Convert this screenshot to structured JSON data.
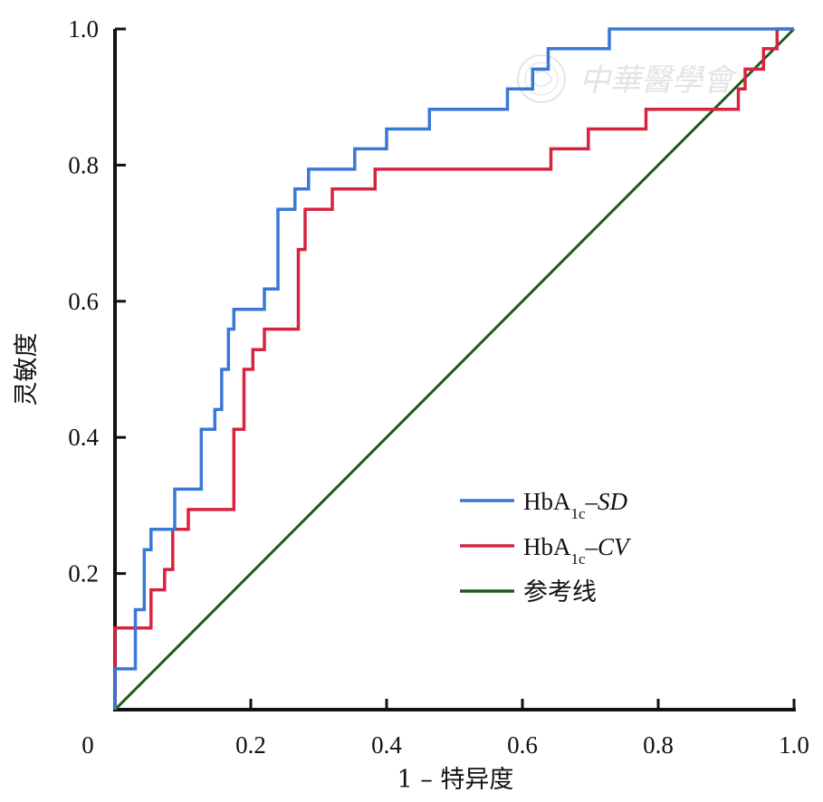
{
  "chart_data": {
    "type": "line",
    "title": "",
    "xlabel": "1 – 特异度",
    "ylabel": "灵敏度",
    "xlim": [
      0,
      1
    ],
    "ylim": [
      0,
      1
    ],
    "x_ticks": [
      "0",
      "0.2",
      "0.4",
      "0.6",
      "0.8",
      "1.0"
    ],
    "y_ticks": [
      "0.2",
      "0.4",
      "0.6",
      "0.8",
      "1.0"
    ],
    "grid": false,
    "legend_position": "lower-right",
    "series": [
      {
        "name": "HbA1c-SD",
        "name_base": "HbA",
        "name_sub": "1c",
        "name_suffix": "–SD",
        "color": "#3a78d6",
        "points": [
          [
            0,
            0
          ],
          [
            0,
            0.06
          ],
          [
            0.03,
            0.06
          ],
          [
            0.03,
            0.147
          ],
          [
            0.043,
            0.147
          ],
          [
            0.043,
            0.235
          ],
          [
            0.053,
            0.235
          ],
          [
            0.053,
            0.265
          ],
          [
            0.088,
            0.265
          ],
          [
            0.088,
            0.324
          ],
          [
            0.127,
            0.324
          ],
          [
            0.127,
            0.412
          ],
          [
            0.147,
            0.412
          ],
          [
            0.147,
            0.441
          ],
          [
            0.157,
            0.441
          ],
          [
            0.157,
            0.5
          ],
          [
            0.167,
            0.5
          ],
          [
            0.167,
            0.559
          ],
          [
            0.175,
            0.559
          ],
          [
            0.175,
            0.588
          ],
          [
            0.22,
            0.588
          ],
          [
            0.22,
            0.618
          ],
          [
            0.24,
            0.618
          ],
          [
            0.24,
            0.735
          ],
          [
            0.265,
            0.735
          ],
          [
            0.265,
            0.765
          ],
          [
            0.285,
            0.765
          ],
          [
            0.285,
            0.794
          ],
          [
            0.353,
            0.794
          ],
          [
            0.353,
            0.824
          ],
          [
            0.4,
            0.824
          ],
          [
            0.4,
            0.853
          ],
          [
            0.463,
            0.853
          ],
          [
            0.463,
            0.882
          ],
          [
            0.578,
            0.882
          ],
          [
            0.578,
            0.912
          ],
          [
            0.615,
            0.912
          ],
          [
            0.615,
            0.941
          ],
          [
            0.638,
            0.941
          ],
          [
            0.638,
            0.971
          ],
          [
            0.728,
            0.971
          ],
          [
            0.728,
            1.0
          ],
          [
            1.0,
            1.0
          ]
        ]
      },
      {
        "name": "HbA1c-CV",
        "name_base": "HbA",
        "name_sub": "1c",
        "name_suffix": "–CV",
        "color": "#d8233f",
        "points": [
          [
            0,
            0
          ],
          [
            0,
            0.12
          ],
          [
            0.053,
            0.12
          ],
          [
            0.053,
            0.176
          ],
          [
            0.073,
            0.176
          ],
          [
            0.073,
            0.206
          ],
          [
            0.085,
            0.206
          ],
          [
            0.085,
            0.265
          ],
          [
            0.108,
            0.265
          ],
          [
            0.108,
            0.294
          ],
          [
            0.175,
            0.294
          ],
          [
            0.175,
            0.412
          ],
          [
            0.19,
            0.412
          ],
          [
            0.19,
            0.5
          ],
          [
            0.203,
            0.5
          ],
          [
            0.203,
            0.529
          ],
          [
            0.22,
            0.529
          ],
          [
            0.22,
            0.559
          ],
          [
            0.27,
            0.559
          ],
          [
            0.27,
            0.676
          ],
          [
            0.28,
            0.676
          ],
          [
            0.28,
            0.735
          ],
          [
            0.32,
            0.735
          ],
          [
            0.32,
            0.765
          ],
          [
            0.383,
            0.765
          ],
          [
            0.383,
            0.794
          ],
          [
            0.642,
            0.794
          ],
          [
            0.642,
            0.824
          ],
          [
            0.697,
            0.824
          ],
          [
            0.697,
            0.853
          ],
          [
            0.782,
            0.853
          ],
          [
            0.782,
            0.882
          ],
          [
            0.918,
            0.882
          ],
          [
            0.918,
            0.912
          ],
          [
            0.928,
            0.912
          ],
          [
            0.928,
            0.941
          ],
          [
            0.955,
            0.941
          ],
          [
            0.955,
            0.971
          ],
          [
            0.975,
            0.971
          ],
          [
            0.975,
            1.0
          ],
          [
            1.0,
            1.0
          ]
        ]
      },
      {
        "name": "参考线",
        "color": "#1e5a1e",
        "points": [
          [
            0,
            0
          ],
          [
            1,
            1
          ]
        ]
      }
    ]
  },
  "watermark": {
    "text": "中華醫學會"
  }
}
